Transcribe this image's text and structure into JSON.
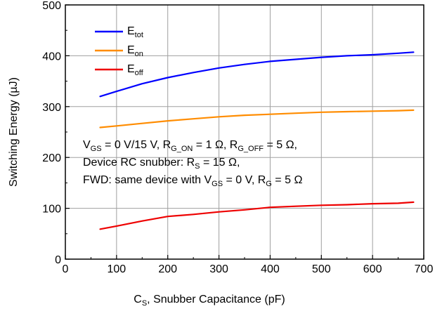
{
  "chart_data": {
    "type": "line",
    "xlabel": {
      "main": "C",
      "sub": "S",
      "rest": ", Snubber Capacitance (pF)"
    },
    "ylabel": "Switching Energy (µJ)",
    "xlim": [
      0,
      700
    ],
    "ylim": [
      0,
      500
    ],
    "xticks": [
      0,
      100,
      200,
      300,
      400,
      500,
      600,
      700
    ],
    "yticks": [
      0,
      100,
      200,
      300,
      400,
      500
    ],
    "grid": true,
    "legend_position": "top-left",
    "series": [
      {
        "key": "etot",
        "name_main": "E",
        "name_sub": "tot",
        "color": "#0000ff",
        "x": [
          68,
          100,
          150,
          200,
          250,
          300,
          350,
          400,
          450,
          500,
          550,
          600,
          650,
          680
        ],
        "y": [
          320,
          330,
          345,
          357,
          367,
          376,
          383,
          389,
          393,
          397,
          400,
          402,
          405,
          407
        ]
      },
      {
        "key": "eon",
        "name_main": "E",
        "name_sub": "on",
        "color": "#ff8c00",
        "x": [
          68,
          100,
          150,
          200,
          250,
          300,
          350,
          400,
          450,
          500,
          550,
          600,
          650,
          680
        ],
        "y": [
          259,
          262,
          267,
          272,
          276,
          280,
          283,
          285,
          287,
          289,
          290,
          291,
          292,
          293
        ]
      },
      {
        "key": "eoff",
        "name_main": "E",
        "name_sub": "off",
        "color": "#ee0000",
        "x": [
          68,
          100,
          150,
          200,
          250,
          300,
          350,
          400,
          450,
          500,
          550,
          600,
          650,
          680
        ],
        "y": [
          59,
          65,
          75,
          84,
          88,
          93,
          97,
          102,
          104,
          106,
          107,
          109,
          110,
          112
        ]
      }
    ],
    "annotations": [
      [
        {
          "t": "V"
        },
        {
          "t": "GS",
          "sub": true
        },
        {
          "t": " = 0 V/15 V, R"
        },
        {
          "t": "G_ON",
          "sub": true
        },
        {
          "t": " = 1 Ω, R"
        },
        {
          "t": "G_OFF",
          "sub": true
        },
        {
          "t": " = 5 Ω,"
        }
      ],
      [
        {
          "t": "Device RC snubber: R"
        },
        {
          "t": "S",
          "sub": true
        },
        {
          "t": " = 15 Ω,"
        }
      ],
      [
        {
          "t": "FWD: same device with V"
        },
        {
          "t": "GS",
          "sub": true
        },
        {
          "t": " = 0 V, R"
        },
        {
          "t": "G",
          "sub": true
        },
        {
          "t": " = 5 Ω"
        }
      ]
    ]
  }
}
